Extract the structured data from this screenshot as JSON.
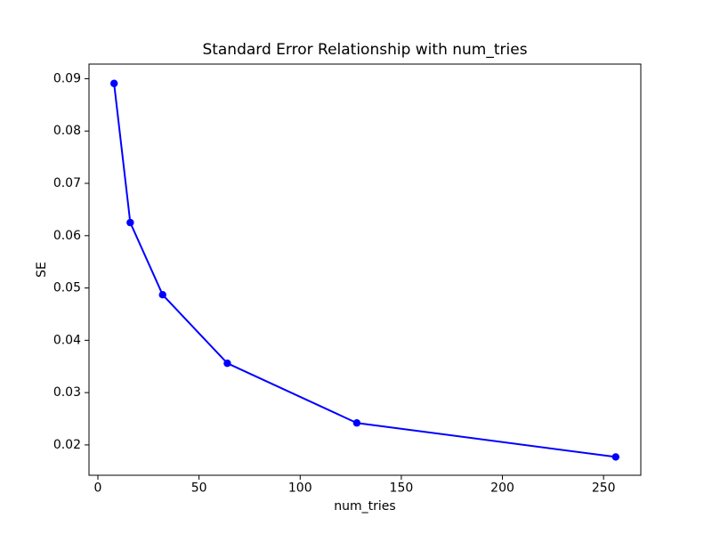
{
  "chart_data": {
    "type": "line",
    "title": "Standard Error Relationship with num_tries",
    "xlabel": "num_tries",
    "ylabel": "SE",
    "x": [
      8,
      16,
      32,
      64,
      128,
      256
    ],
    "y": [
      0.0891,
      0.0625,
      0.0487,
      0.0356,
      0.0242,
      0.0177
    ],
    "xlim": [
      -4.4,
      268.4
    ],
    "ylim": [
      0.0142,
      0.0928
    ],
    "xticks": {
      "values": [
        0,
        50,
        100,
        150,
        200,
        250
      ],
      "labels": [
        "0",
        "50",
        "100",
        "150",
        "200",
        "250"
      ]
    },
    "yticks": {
      "values": [
        0.02,
        0.03,
        0.04,
        0.05,
        0.06,
        0.07,
        0.08,
        0.09
      ],
      "labels": [
        "0.02",
        "0.03",
        "0.04",
        "0.05",
        "0.06",
        "0.07",
        "0.08",
        "0.09"
      ]
    },
    "line_color": "#0000ff",
    "marker": "o",
    "grid": false,
    "legend": null,
    "background_color": "#ffffff",
    "spine_color": "#000000"
  }
}
